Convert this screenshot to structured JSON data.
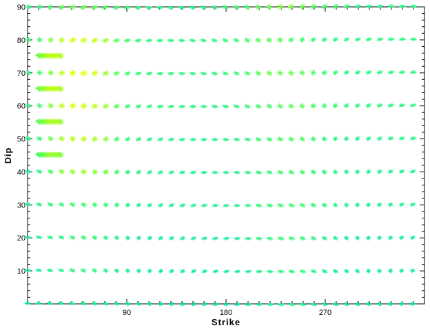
{
  "chart_data": {
    "type": "scatter",
    "xlabel": "Strike",
    "ylabel": "Dip",
    "xlim": [
      0,
      360
    ],
    "ylim": [
      0,
      90
    ],
    "x_ticks": [
      90,
      180,
      270
    ],
    "y_ticks": [
      10,
      20,
      30,
      40,
      50,
      60,
      70,
      80,
      90
    ],
    "grid": false,
    "marker": "focal-mechanism-glyph",
    "colors": {
      "low_fit": "#00e8b0",
      "mid_fit": "#40ff60",
      "high_fit": "#e8ff00",
      "frame": "#000000"
    },
    "rows": [
      {
        "dip": 0,
        "strike_start": 0,
        "strike_end": 355,
        "step": 10,
        "fit": [
          0.2,
          0.25,
          0.25,
          0.3,
          0.35,
          0.35,
          0.35,
          0.3,
          0.3,
          0.25,
          0.25,
          0.2,
          0.2,
          0.2,
          0.2,
          0.2,
          0.2,
          0.2,
          0.2,
          0.2,
          0.25,
          0.25,
          0.3,
          0.35,
          0.35,
          0.35,
          0.3,
          0.3,
          0.25,
          0.25,
          0.2,
          0.2,
          0.2,
          0.2,
          0.2,
          0.2
        ]
      },
      {
        "dip": 10,
        "strike_start": 0,
        "strike_end": 355,
        "step": 10,
        "fit": [
          0.25,
          0.3,
          0.35,
          0.4,
          0.45,
          0.45,
          0.45,
          0.4,
          0.35,
          0.3,
          0.25,
          0.25,
          0.25,
          0.25,
          0.25,
          0.25,
          0.25,
          0.25,
          0.25,
          0.25,
          0.3,
          0.35,
          0.4,
          0.45,
          0.45,
          0.45,
          0.4,
          0.35,
          0.3,
          0.25,
          0.25,
          0.25,
          0.25,
          0.25,
          0.25,
          0.25
        ]
      },
      {
        "dip": 20,
        "strike_start": 0,
        "strike_end": 355,
        "step": 10,
        "fit": [
          0.3,
          0.35,
          0.4,
          0.45,
          0.5,
          0.5,
          0.5,
          0.45,
          0.4,
          0.35,
          0.3,
          0.3,
          0.3,
          0.3,
          0.3,
          0.3,
          0.3,
          0.3,
          0.3,
          0.3,
          0.35,
          0.4,
          0.45,
          0.5,
          0.5,
          0.5,
          0.45,
          0.4,
          0.35,
          0.3,
          0.3,
          0.3,
          0.3,
          0.3,
          0.3,
          0.3
        ]
      },
      {
        "dip": 30,
        "strike_start": 0,
        "strike_end": 355,
        "step": 10,
        "fit": [
          0.35,
          0.4,
          0.45,
          0.5,
          0.55,
          0.55,
          0.55,
          0.5,
          0.45,
          0.4,
          0.35,
          0.35,
          0.35,
          0.35,
          0.35,
          0.35,
          0.35,
          0.35,
          0.35,
          0.35,
          0.4,
          0.45,
          0.5,
          0.55,
          0.55,
          0.55,
          0.5,
          0.45,
          0.4,
          0.35,
          0.35,
          0.35,
          0.35,
          0.35,
          0.35,
          0.35
        ]
      },
      {
        "dip": 40,
        "strike_start": 0,
        "strike_end": 355,
        "step": 10,
        "fit": [
          0.35,
          0.45,
          0.6,
          0.75,
          0.8,
          0.8,
          0.75,
          0.7,
          0.55,
          0.45,
          0.4,
          0.35,
          0.35,
          0.35,
          0.35,
          0.35,
          0.35,
          0.35,
          0.35,
          0.35,
          0.4,
          0.45,
          0.5,
          0.55,
          0.55,
          0.55,
          0.5,
          0.45,
          0.4,
          0.35,
          0.35,
          0.35,
          0.35,
          0.35,
          0.35,
          0.35
        ]
      },
      {
        "dip": 45,
        "strike_start": 10,
        "strike_end": 30,
        "step": 2.5,
        "fit": [
          0.6,
          0.65,
          0.7,
          0.75,
          0.8,
          0.8,
          0.8,
          0.8,
          0.75
        ]
      },
      {
        "dip": 50,
        "strike_start": 0,
        "strike_end": 355,
        "step": 10,
        "fit": [
          0.4,
          0.5,
          0.7,
          0.85,
          0.9,
          0.9,
          0.85,
          0.75,
          0.6,
          0.5,
          0.45,
          0.4,
          0.4,
          0.4,
          0.4,
          0.4,
          0.4,
          0.4,
          0.4,
          0.4,
          0.45,
          0.5,
          0.55,
          0.6,
          0.6,
          0.6,
          0.55,
          0.5,
          0.45,
          0.4,
          0.4,
          0.4,
          0.4,
          0.4,
          0.4,
          0.4
        ]
      },
      {
        "dip": 55,
        "strike_start": 10,
        "strike_end": 30,
        "step": 2.5,
        "fit": [
          0.65,
          0.7,
          0.75,
          0.8,
          0.85,
          0.85,
          0.85,
          0.85,
          0.8
        ]
      },
      {
        "dip": 60,
        "strike_start": 0,
        "strike_end": 355,
        "step": 10,
        "fit": [
          0.45,
          0.55,
          0.75,
          0.9,
          0.95,
          0.95,
          0.9,
          0.8,
          0.65,
          0.55,
          0.5,
          0.45,
          0.45,
          0.45,
          0.45,
          0.45,
          0.45,
          0.45,
          0.45,
          0.45,
          0.5,
          0.55,
          0.6,
          0.65,
          0.65,
          0.65,
          0.6,
          0.55,
          0.5,
          0.45,
          0.45,
          0.45,
          0.45,
          0.45,
          0.45,
          0.45
        ]
      },
      {
        "dip": 65,
        "strike_start": 10,
        "strike_end": 30,
        "step": 2.5,
        "fit": [
          0.7,
          0.75,
          0.8,
          0.85,
          0.9,
          0.9,
          0.9,
          0.9,
          0.85
        ]
      },
      {
        "dip": 70,
        "strike_start": 0,
        "strike_end": 355,
        "step": 10,
        "fit": [
          0.45,
          0.55,
          0.75,
          0.9,
          1.0,
          1.0,
          0.95,
          0.8,
          0.65,
          0.55,
          0.5,
          0.45,
          0.45,
          0.45,
          0.45,
          0.45,
          0.45,
          0.45,
          0.5,
          0.55,
          0.6,
          0.65,
          0.7,
          0.7,
          0.7,
          0.65,
          0.6,
          0.55,
          0.5,
          0.45,
          0.45,
          0.45,
          0.45,
          0.45,
          0.45,
          0.45
        ]
      },
      {
        "dip": 75,
        "strike_start": 10,
        "strike_end": 30,
        "step": 2.5,
        "fit": [
          0.7,
          0.75,
          0.8,
          0.85,
          0.9,
          0.9,
          0.9,
          0.9,
          0.85
        ]
      },
      {
        "dip": 80,
        "strike_start": 0,
        "strike_end": 355,
        "step": 10,
        "fit": [
          0.45,
          0.55,
          0.75,
          0.9,
          0.95,
          0.95,
          0.9,
          0.8,
          0.65,
          0.55,
          0.5,
          0.45,
          0.45,
          0.45,
          0.45,
          0.45,
          0.45,
          0.45,
          0.5,
          0.55,
          0.6,
          0.65,
          0.65,
          0.65,
          0.6,
          0.55,
          0.5,
          0.45,
          0.45,
          0.45,
          0.45,
          0.45,
          0.45,
          0.45,
          0.45,
          0.45
        ]
      },
      {
        "dip": 90,
        "strike_start": 0,
        "strike_end": 355,
        "step": 10,
        "fit": [
          0.4,
          0.45,
          0.55,
          0.65,
          0.7,
          0.7,
          0.65,
          0.6,
          0.55,
          0.5,
          0.45,
          0.4,
          0.4,
          0.4,
          0.4,
          0.4,
          0.4,
          0.45,
          0.5,
          0.55,
          0.6,
          0.65,
          0.7,
          0.75,
          0.75,
          0.7,
          0.65,
          0.6,
          0.55,
          0.5,
          0.45,
          0.4,
          0.4,
          0.4,
          0.4,
          0.4
        ]
      }
    ]
  }
}
